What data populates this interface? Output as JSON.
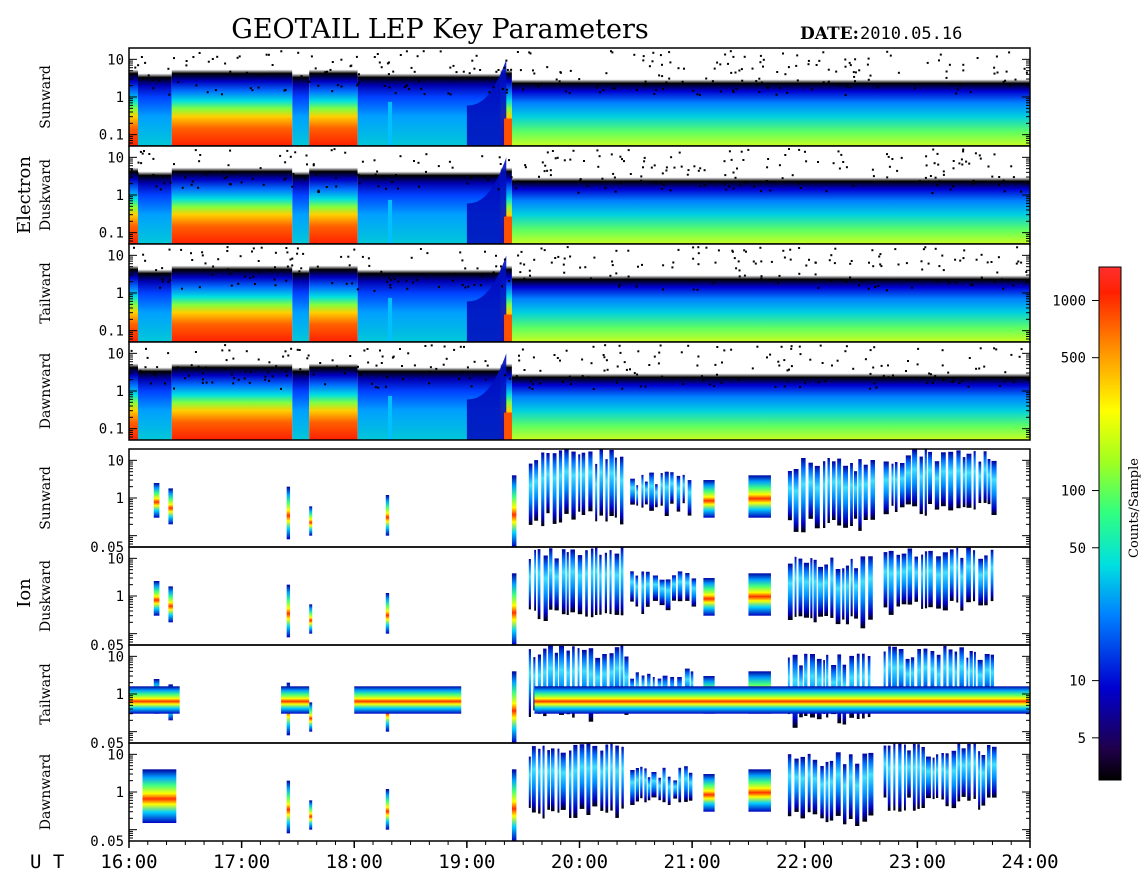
{
  "header": {
    "title": "GEOTAIL LEP Key Parameters",
    "date_label": "DATE:",
    "date_value": "2010.05.16"
  },
  "chart_data": {
    "type": "heatmap",
    "x_axis": {
      "label": "U T",
      "ticks": [
        "16:00",
        "17:00",
        "18:00",
        "19:00",
        "20:00",
        "21:00",
        "22:00",
        "23:00",
        "24:00"
      ],
      "range_hours": [
        16,
        24
      ]
    },
    "groups": [
      {
        "name": "Electron",
        "y_ticks": [
          "10",
          "1",
          "0.1"
        ],
        "y_range": [
          0.05,
          20
        ],
        "panels": [
          "Sunward",
          "Duskward",
          "Tailward",
          "Dawnward"
        ]
      },
      {
        "name": "Ion",
        "y_ticks": [
          "10",
          "1",
          "0.05"
        ],
        "y_range": [
          0.05,
          20
        ],
        "panels": [
          "Sunward",
          "Duskward",
          "Tailward",
          "Dawnward"
        ]
      }
    ],
    "colorbar": {
      "label": "Counts/Sample",
      "scale": "log",
      "range": [
        3,
        1500
      ],
      "ticks": [
        "1000",
        "500",
        "100",
        "50",
        "10",
        "5"
      ],
      "tick_values": [
        1000,
        500,
        100,
        50,
        10,
        5
      ],
      "colors": [
        "#000000",
        "#0000c8",
        "#00a0ff",
        "#00ffd0",
        "#50ff30",
        "#ffff00",
        "#ff8000",
        "#ff0000",
        "#ff2020"
      ]
    },
    "electron_profile": {
      "segments": [
        {
          "t": [
            16.0,
            16.08
          ],
          "state": "sheet"
        },
        {
          "t": [
            16.08,
            16.38
          ],
          "state": "lobe"
        },
        {
          "t": [
            16.38,
            17.45
          ],
          "state": "sheet"
        },
        {
          "t": [
            17.45,
            17.6
          ],
          "state": "lobe"
        },
        {
          "t": [
            17.6,
            18.03
          ],
          "state": "sheet"
        },
        {
          "t": [
            18.03,
            19.3
          ],
          "state": "lobe"
        },
        {
          "t": [
            19.3,
            19.4
          ],
          "state": "sheet"
        },
        {
          "t": [
            19.4,
            24.0
          ],
          "state": "sheath"
        }
      ],
      "boundary_rise_to": 10
    },
    "ion_blobs": [
      {
        "t": [
          16.22,
          16.27
        ],
        "y": [
          0.3,
          2.5
        ]
      },
      {
        "t": [
          16.35,
          16.39
        ],
        "y": [
          0.2,
          1.8
        ]
      },
      {
        "t": [
          17.4,
          17.43
        ],
        "y": [
          0.08,
          2.0
        ]
      },
      {
        "t": [
          17.6,
          17.62
        ],
        "y": [
          0.1,
          0.6
        ]
      },
      {
        "t": [
          18.28,
          18.31
        ],
        "y": [
          0.1,
          1.2
        ]
      },
      {
        "t": [
          19.4,
          19.44
        ],
        "y": [
          0.05,
          4
        ]
      },
      {
        "t": [
          19.55,
          20.4
        ],
        "y": [
          0.3,
          20
        ]
      },
      {
        "t": [
          20.45,
          21.0
        ],
        "y": [
          0.5,
          5
        ]
      },
      {
        "t": [
          21.1,
          21.2
        ],
        "y": [
          0.3,
          3
        ]
      },
      {
        "t": [
          21.5,
          21.7
        ],
        "y": [
          0.3,
          4
        ]
      },
      {
        "t": [
          21.85,
          22.6
        ],
        "y": [
          0.2,
          12
        ]
      },
      {
        "t": [
          22.7,
          23.7
        ],
        "y": [
          0.5,
          20
        ]
      }
    ]
  }
}
